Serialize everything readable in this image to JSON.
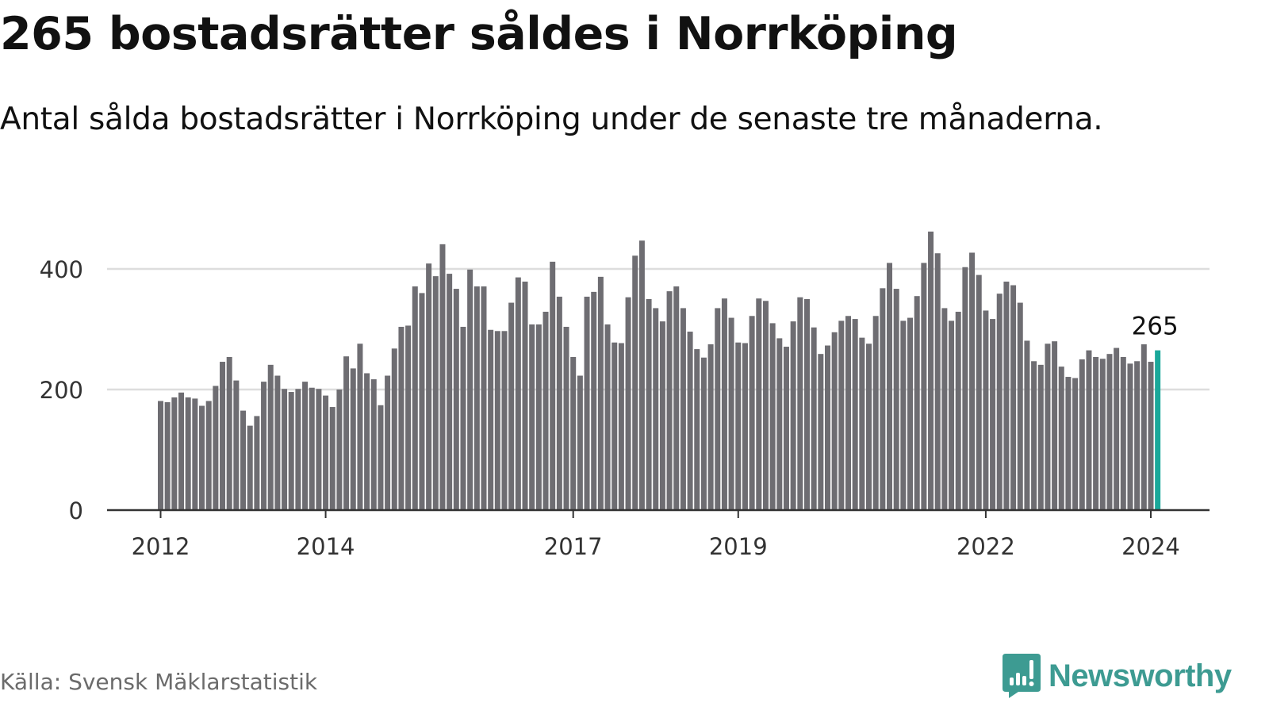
{
  "title": "265 bostadsrätter såldes i Norrköping",
  "subtitle": "Antal sålda bostadsrätter i Norrköping under de senaste tre månaderna.",
  "source": "Källa: Svensk Mäklarstatistik",
  "logo_text": "Newsworthy",
  "colors": {
    "bar": "#6e6d72",
    "highlight": "#1aa89a",
    "grid": "#dddddd",
    "logo": "#3d9b92"
  },
  "chart_data": {
    "type": "bar",
    "title": "265 bostadsrätter såldes i Norrköping",
    "xlabel": "",
    "ylabel": "",
    "start_month": "2012-01",
    "end_month": "2024-02",
    "ylim": [
      0,
      480
    ],
    "yticks": [
      0,
      200,
      400
    ],
    "xtick_labels": [
      {
        "label": "2012",
        "index": 0
      },
      {
        "label": "2014",
        "index": 24
      },
      {
        "label": "2017",
        "index": 60
      },
      {
        "label": "2019",
        "index": 84
      },
      {
        "label": "2022",
        "index": 120
      },
      {
        "label": "2024",
        "index": 144
      }
    ],
    "grid": true,
    "highlight_index": 145,
    "annotation": "265",
    "values": [
      181,
      179,
      187,
      195,
      187,
      185,
      173,
      181,
      206,
      246,
      254,
      215,
      165,
      140,
      156,
      213,
      241,
      223,
      201,
      196,
      201,
      213,
      203,
      201,
      190,
      171,
      200,
      255,
      235,
      276,
      227,
      217,
      174,
      223,
      268,
      304,
      306,
      371,
      360,
      409,
      388,
      441,
      392,
      367,
      304,
      399,
      371,
      371,
      299,
      297,
      297,
      344,
      386,
      379,
      308,
      308,
      329,
      412,
      354,
      304,
      254,
      223,
      354,
      362,
      387,
      308,
      278,
      277,
      353,
      422,
      447,
      350,
      335,
      313,
      363,
      371,
      335,
      296,
      267,
      253,
      275,
      335,
      351,
      319,
      278,
      277,
      322,
      351,
      347,
      310,
      285,
      271,
      313,
      353,
      350,
      303,
      259,
      273,
      295,
      314,
      322,
      317,
      286,
      276,
      322,
      368,
      410,
      367,
      314,
      319,
      355,
      410,
      462,
      426,
      335,
      314,
      329,
      403,
      427,
      390,
      331,
      317,
      359,
      379,
      373,
      344,
      281,
      247,
      241,
      276,
      280,
      238,
      221,
      219,
      250,
      265,
      254,
      251,
      259,
      269,
      254,
      243,
      247,
      275,
      246,
      265
    ]
  }
}
